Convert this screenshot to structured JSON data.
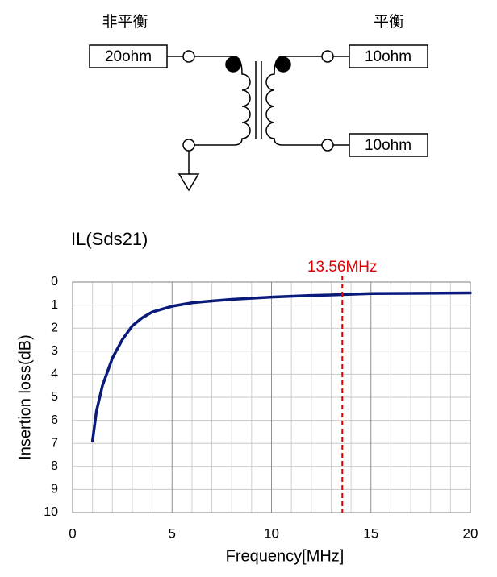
{
  "diagram": {
    "unbalanced_label": "非平衡",
    "balanced_label": "平衡",
    "ports": [
      "20ohm",
      "10ohm",
      "10ohm"
    ]
  },
  "chart_data": {
    "type": "line",
    "title": "IL(Sds21)",
    "x_label": "Frequency[MHz]",
    "y_label": "Insertion loss(dB)",
    "xlim": [
      0,
      20
    ],
    "xticks": [
      0,
      5,
      10,
      15,
      20
    ],
    "x_minor_ticks": [
      1,
      2,
      3,
      4,
      6,
      7,
      8,
      9,
      11,
      12,
      13,
      14,
      16,
      17,
      18,
      19
    ],
    "ylim": [
      0,
      10
    ],
    "yticks": [
      0,
      1,
      2,
      3,
      4,
      5,
      6,
      7,
      8,
      9,
      10
    ],
    "y_inverted": true,
    "grid": true,
    "series": [
      {
        "name": "IL(Sds21)",
        "color": "#0a1a7a",
        "x": [
          1,
          1.2,
          1.5,
          2,
          2.5,
          3,
          3.5,
          4,
          5,
          6,
          7,
          8,
          10,
          12,
          13,
          15,
          17,
          20
        ],
        "values": [
          6.9,
          5.6,
          4.5,
          3.3,
          2.5,
          1.9,
          1.55,
          1.3,
          1.05,
          0.9,
          0.82,
          0.75,
          0.65,
          0.58,
          0.56,
          0.5,
          0.49,
          0.47
        ]
      }
    ],
    "markers": [
      {
        "x": 13.56,
        "label": "13.56MHz",
        "color": "#e00000"
      }
    ]
  }
}
